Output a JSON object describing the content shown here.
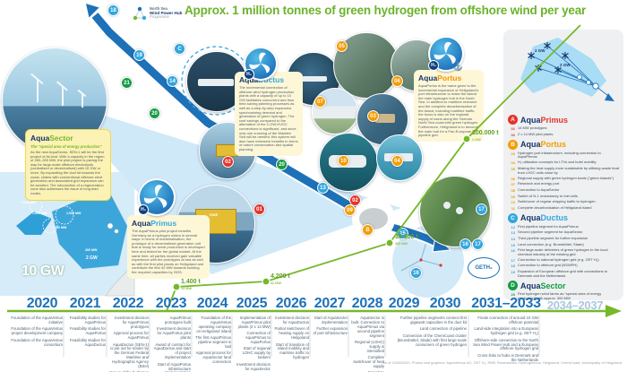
{
  "header": {
    "logo": {
      "line1": "North Sea",
      "line2": "Wind Power Hub",
      "line3": "Programme"
    },
    "title": "Approx. 1 million tonnes of green hydrogen from offshore wind per year"
  },
  "colors": {
    "accent_green": "#76b82a",
    "brand_navy": "#17356b",
    "year_blue": "#1d71b8",
    "red": "#e6332a",
    "orange": "#f59c00",
    "blue": "#31a6df",
    "green": "#169b47"
  },
  "cards": {
    "sector": {
      "brand_a": "Aqua",
      "brand_b": "Sector",
      "subtitle": "The \"special area of energy production\"",
      "body": "As the new AquaSector, SEN-1 will be the first project of its kind. With a capacity in the region of 280–300 MW, the pilot project is paving the way for large-scale offshore electrolysis (centralised or decentralised) with 10 GW or more. By expanding the duct kit towards the coast, chains with conventional offshore wind generation and associated grid expansion can be avoided. The introduction of a regeneration zone also addresses the issue of long lead routes."
    },
    "primus": {
      "brand_a": "Aqua",
      "brand_b": "Primus",
      "body": "The AquaPrimus pilot project benefits Germany as a hydrogen nation in several ways: in terms of industrialisation, the prototype of a decentralised generation unit that is ready for serial production is developed here and tested for the global market. At the same time, all parties involved gain valuable experience with the prototypes at sea as well as with the first pilot plants on Heligoland and contribute the first 42 MW towards building the required capacities by 2025."
    },
    "ductus": {
      "brand_a": "Aqua",
      "brand_b": "Ductus",
      "body": "The incremental connection of offshore wind hydrogen production plants with a capacity of up to 10 GW facilitates concurrent and thus time-saving planning processes as well as a step-by-step expansion, synchronising demand and generation of green hydrogen. The cost savings compared to the alternative of the 2-GW-HVDC connections is significant, and since only one crossing of the Wadden Sea will be needed, this system will also have extensive benefits in terms of nature conservation and spatial planning."
    },
    "portus": {
      "brand_a": "Aqua",
      "brand_b": "Portus",
      "body": "AquaPortus is the name given to the incremental expansion of Heligoland's port infrastructure to make the island the main hydrogen hub in the North Sea. In addition to maritime research and the complete decarbonisation of the island, including maritime traffic, the focus is also on the regional supply of users along the German North Sea coast with green hydrogen. Furthermore, Heligoland is to become the main hub for a Pan-European H₂ pipeline grid."
    }
  },
  "map": {
    "gw_label": "10 GW",
    "l1": "5.000 MW",
    "l2": "1.500 MW",
    "l3": "1.000 MW",
    "l4": "1.000 MW",
    "l5": "300 MW",
    "l6": "2 GW"
  },
  "badges": {
    "n01": "01",
    "n02": "02",
    "n03": "03",
    "n04": "04",
    "n05": "05",
    "n06": "06",
    "n07": "07",
    "n09": "09",
    "n10": "10",
    "n13": "13",
    "n14": "14",
    "n15": "15",
    "n16": "16",
    "n17": "17",
    "n18": "18",
    "n19": "19",
    "n20": "20",
    "n21": "21",
    "letter_b": "B",
    "letter_c": "C"
  },
  "production": [
    {
      "t": "1.400 t",
      "cap": "14 MW"
    },
    {
      "t": "4.200 t",
      "cap": "42 MW"
    },
    {
      "t": "30.000 t",
      "cap": "300 MW"
    },
    {
      "t": "100.000 t",
      "cap": "1 GW"
    }
  ],
  "geth2_label": "GETH₂",
  "legend": {
    "map_labels": [
      "2 GW",
      "2 GW"
    ],
    "a": {
      "letter": "A",
      "brand_a": "Aqua",
      "brand_b": "Primus",
      "items": [
        {
          "n": "01",
          "t": "14 MW prototypes"
        },
        {
          "n": "02",
          "t": "2 x 14 MW pilot plants"
        }
      ]
    },
    "b": {
      "letter": "B",
      "brand_a": "Aqua",
      "brand_b": "Portus",
      "items": [
        {
          "n": "03",
          "t": "Hydrogen port infrastructure, including connection to AquaPrimus"
        },
        {
          "n": "04",
          "t": "H₂ utilisation concepts for LTVs and hotel mobility"
        },
        {
          "n": "05",
          "t": "Making the heat supply more sustainable by utilising waste heat from LH2C units close by"
        },
        {
          "n": "06",
          "t": "Regional supply with green hydrogen boats (\"green islands\")"
        },
        {
          "n": "07",
          "t": "Research and energy port"
        },
        {
          "n": "08",
          "t": "Connection to AquaSector"
        },
        {
          "n": "09",
          "t": "Switch of N-1 redundancy to fuel cells"
        },
        {
          "n": "10",
          "t": "Switchover of regular shipping traffic to hydrogen"
        },
        {
          "n": "11",
          "t": "Complete decarbonisation of Heligoland island"
        }
      ]
    },
    "c": {
      "letter": "C",
      "brand_a": "Aqua",
      "brand_b": "Ductus",
      "items": [
        {
          "n": "12",
          "t": "First pipeline segment for AquaPrimus"
        },
        {
          "n": "13",
          "t": "Second pipeline segment for AquaSector"
        },
        {
          "n": "14",
          "t": "Third pipeline segment for further expansion"
        },
        {
          "n": "15",
          "t": "Land connection (e.g. Brunsbüttel, Stade)"
        },
        {
          "n": "16",
          "t": "First large-scale deliveries of green hydrogen to the local chemical industry at the existing grid"
        },
        {
          "n": "17",
          "t": "Connection to national hydrogen grid (e.g. GET H₂)"
        },
        {
          "n": "18",
          "t": "Connection to offshore grid (NSWPH)"
        },
        {
          "n": "19",
          "t": "Expansion of European offshore grid with connections to Denmark and the Netherlands"
        }
      ]
    },
    "d": {
      "letter": "D",
      "brand_a": "Aqua",
      "brand_b": "Sector",
      "items": [
        {
          "n": "20",
          "t": "First hydrogen wind farms as \"special area of energy production\" with approx. 300 MW"
        },
        {
          "n": "21",
          "t": "Connection of up to 10 GW offshore wind capacity in the \"duct kit\" with further AquaDuctus pipeline segments"
        }
      ]
    }
  },
  "timeline": {
    "y2020": {
      "year": "2020",
      "items": [
        "Foundation of the AquaVentus initiative",
        "Foundation of the AquaVentus project development company",
        "Foundation of the AquaVentus consortium"
      ]
    },
    "y2021": {
      "year": "2021",
      "items": [
        "Feasibility studies for AquaPrimus",
        "Feasibility studies for AquaPortus",
        "Feasibility studies for AquaDuctus"
      ]
    },
    "y2022": {
      "year": "2022",
      "items": [
        "Investment decision for AquaPrimus prototypes",
        "Approval process for AquaPrimus",
        "AquaDuctus (SEN-1) is put out for tender by the German Federal Maritime and Hydrographic Agency (BSH)",
        "Set-up of the hydrogen Research Cluster Heligoland"
      ]
    },
    "y2023": {
      "year": "2023",
      "items": [
        "AquaPrimus prototypes built",
        "Investment decision for AquaPortus pilot plants",
        "Award of contract for AquaDuctus and start of project implementation",
        "Start of AquaPortus infrastructure implementation"
      ]
    },
    "y2024": {
      "year": "2024",
      "items": [
        "Foundation of the AquaVentus operating company on Heligoland island",
        "The first AquaPrimus pipeline segment is laid",
        "Approval process for AquaSector land connection"
      ]
    },
    "y2025": {
      "year": "2025",
      "items": [
        "Implementation of AquaPrimus pilot plants (2 x 14 MW)",
        "Connection of AquaPrimus to AquaPortus",
        "Start of regional LOHC supply by tankers",
        "Investment decision for AquaSector",
        "Further tendering processes of H₂ areas by the BSH"
      ]
    },
    "y2026": {
      "year": "2026",
      "items": [
        "Investment decision for AquaDuctus",
        "Partial switchover of heating supply on Heligoland",
        "Start of transition of island mobility and maritime traffic to hydrogen"
      ]
    },
    "y2027": {
      "year": "2027",
      "items": [
        "Start of AquaSector implementation",
        "Further expansion of port infrastructure"
      ]
    },
    "y2028": {
      "year": "2028",
      "items": [
        "AquaSector is built. Connection to AquaPrimus via second pipeline segment",
        "Regional (LOHC) supply is intensified",
        "Complete switchover of heat supply",
        "Complete decarbonisation of Heligoland island"
      ]
    },
    "y2029": {
      "year": "2029",
      "items": []
    },
    "y2030": {
      "year": "2030",
      "items": [
        "Further pipeline segments connect first gigawatt capacities in the duct kit",
        "Land connection of pipeline",
        "Connection of the ChemCoast cluster (Brunsbüttel, Stade) with first large-scale consumers of green hydrogen"
      ]
    },
    "y2031": {
      "year": "2031–2033",
      "items": [
        "Finale connection of around 10 GW offshore potential",
        "Land-side integration into a European hydrogen grid (e.g. GET H₂)",
        "Offshore-side connection to the North Sea Wind Power Hub and a European offshore hydrogen grid",
        "Cross links to hubs in Denmark and the Netherlands"
      ]
    },
    "y2034": {
      "year": "2034–2037",
      "items": []
    }
  },
  "footer": "As of 10/08/2020. Photos and graphics: AquaVentus eG, GET H₂, RWE Renewables, Hydrogenious, Helgoland, ChemCoast, Municipality of Helgoland"
}
